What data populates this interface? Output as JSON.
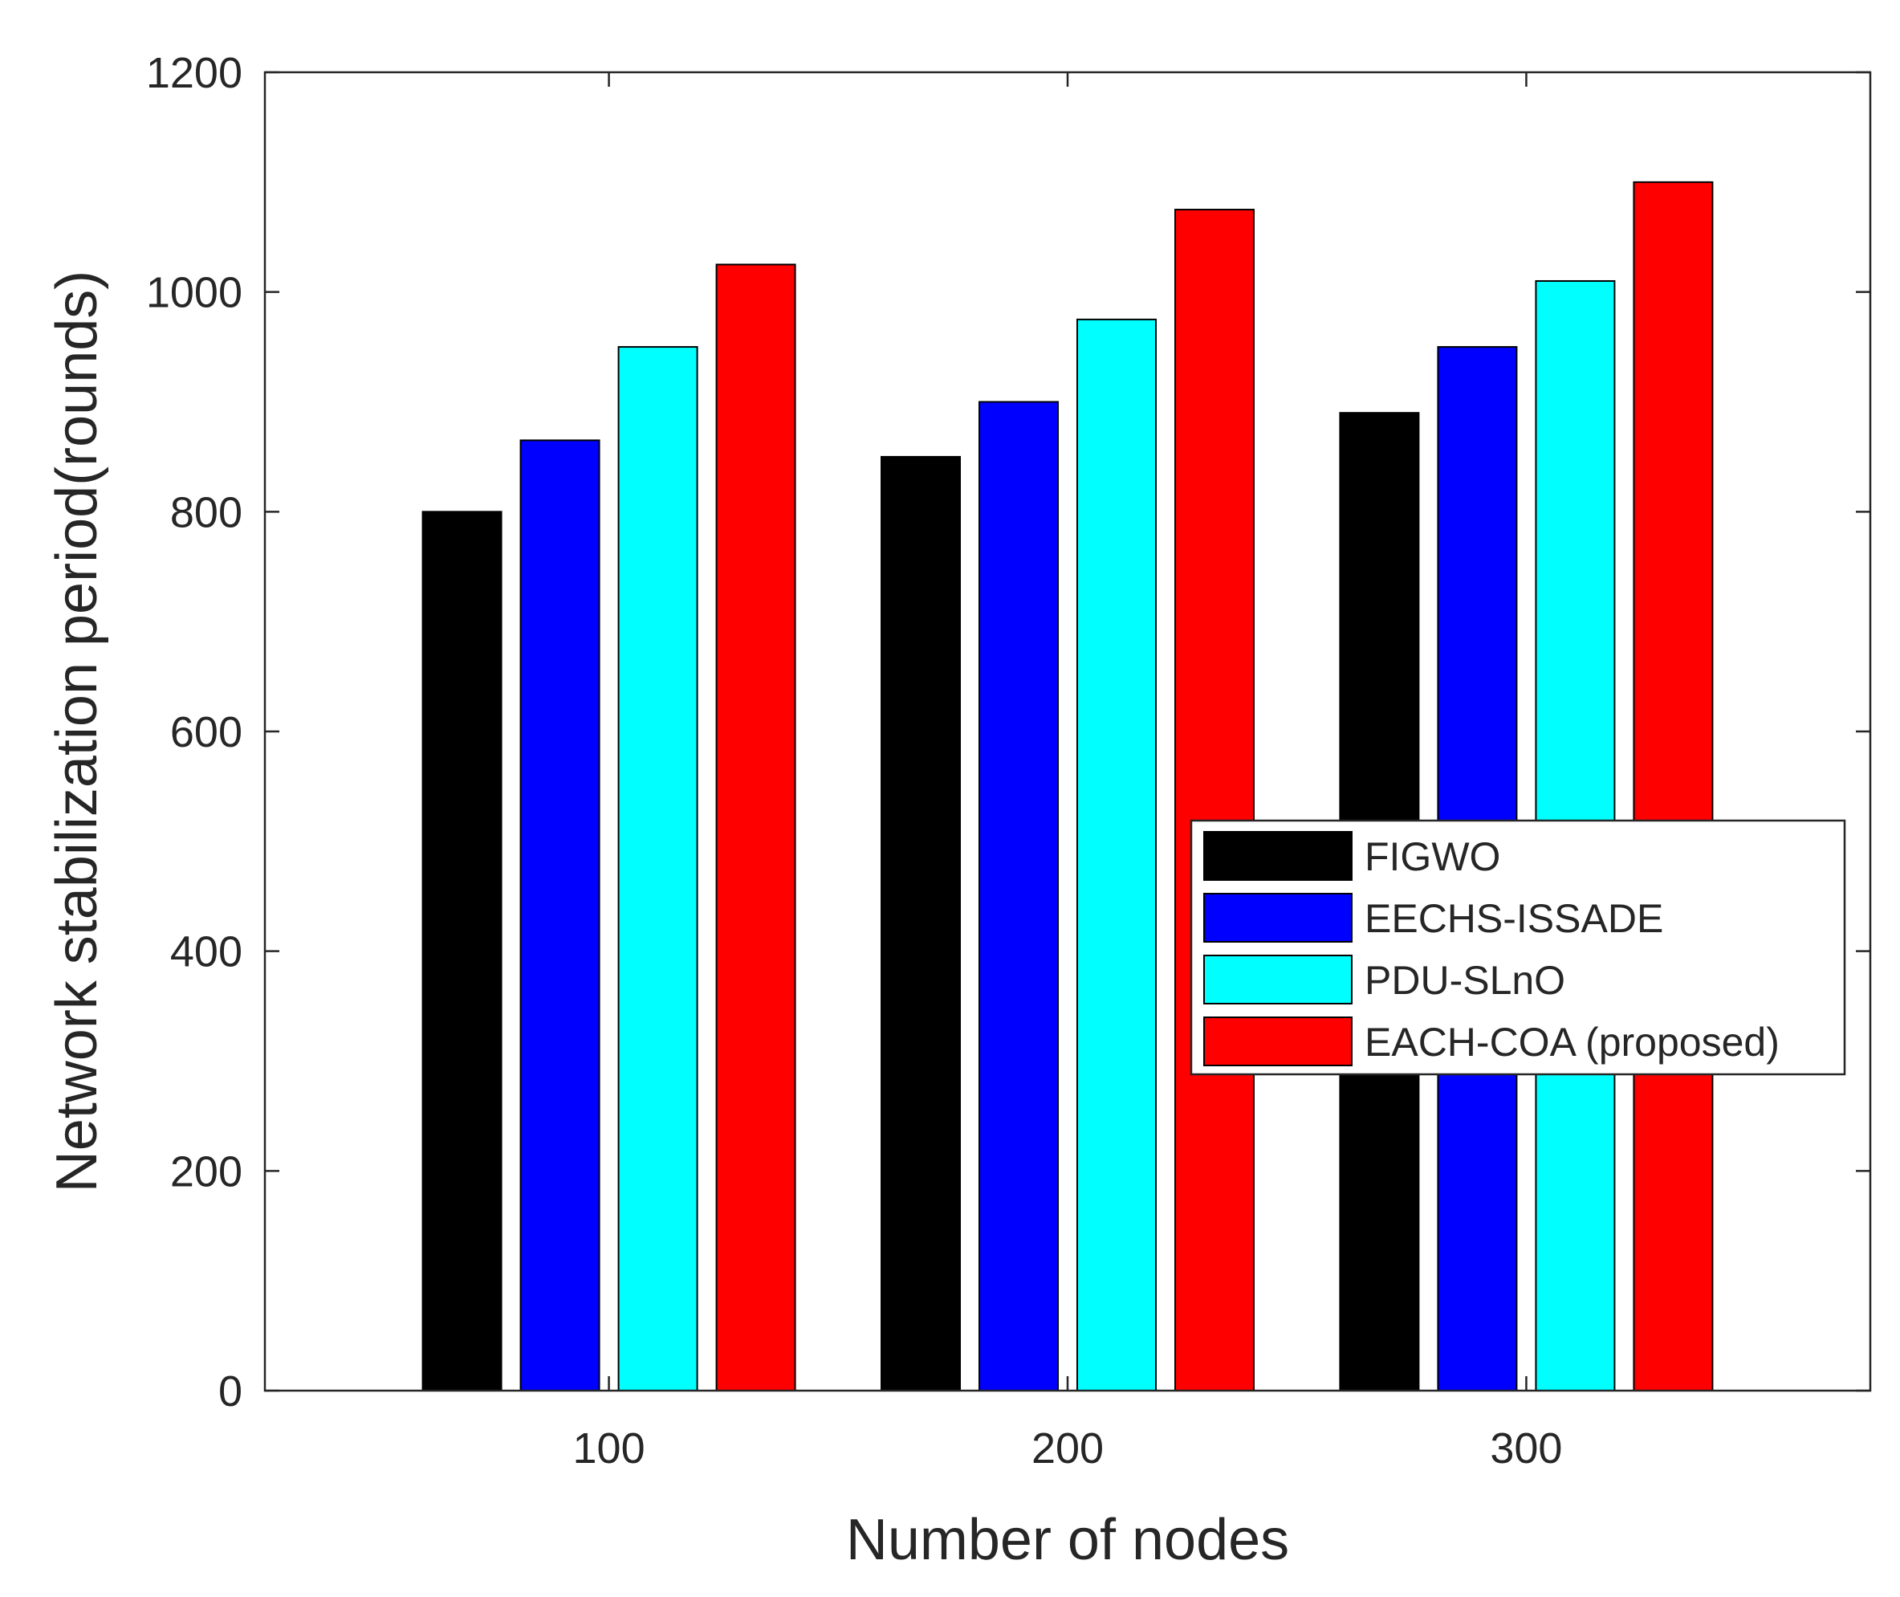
{
  "chart_data": {
    "type": "bar",
    "title": "",
    "xlabel": "Number of nodes",
    "ylabel": "Network stabilization period(rounds)",
    "categories": [
      "100",
      "200",
      "300"
    ],
    "ylim": [
      0,
      1200
    ],
    "yticks": [
      "0",
      "200",
      "400",
      "600",
      "800",
      "1000",
      "1200"
    ],
    "grid": false,
    "legend_position": "center-right",
    "series": [
      {
        "name": "FIGWO",
        "color": "#000000",
        "values": [
          800,
          850,
          890
        ]
      },
      {
        "name": "EECHS-ISSADE",
        "color": "#0000ff",
        "values": [
          865,
          900,
          950
        ]
      },
      {
        "name": "PDU-SLnO",
        "color": "#00ffff",
        "values": [
          950,
          975,
          1010
        ]
      },
      {
        "name": "EACH-COA (proposed)",
        "color": "#ff0000",
        "values": [
          1025,
          1075,
          1100
        ]
      }
    ]
  }
}
